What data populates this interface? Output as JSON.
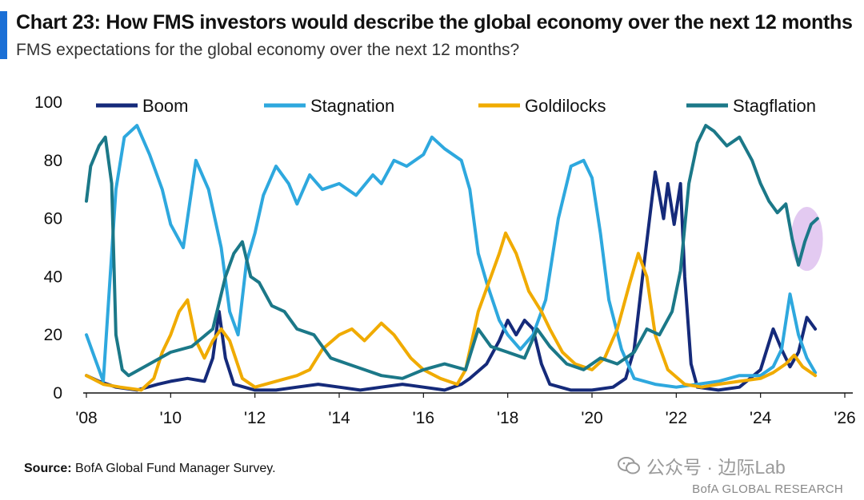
{
  "header": {
    "title": "Chart 23: How FMS investors would describe the global economy over the next 12 months",
    "subtitle": "FMS expectations for the global economy over the next 12 months?",
    "accent_color": "#1a6fd6"
  },
  "footer": {
    "source_label": "Source:",
    "source_text": " BofA Global Fund Manager Survey.",
    "watermark": "公众号 · 边际Lab",
    "watermark_icon": "wechat-icon",
    "brand": "BofA GLOBAL RESEARCH"
  },
  "chart_data": {
    "type": "line",
    "title": "Chart 23: How FMS investors would describe the global economy over the next 12 months",
    "subtitle": "FMS expectations for the global economy over the next 12 months?",
    "xlabel": "",
    "ylabel": "",
    "xlim": [
      2008,
      2026
    ],
    "ylim": [
      0,
      100
    ],
    "x_ticks": [
      2008,
      2010,
      2012,
      2014,
      2016,
      2018,
      2020,
      2022,
      2024,
      2026
    ],
    "x_tick_labels": [
      "'08",
      "'10",
      "'12",
      "'14",
      "'16",
      "'18",
      "'20",
      "'22",
      "'24",
      "'26"
    ],
    "y_ticks": [
      0,
      20,
      40,
      60,
      80,
      100
    ],
    "legend_position": "top",
    "series": [
      {
        "name": "Boom",
        "color": "#152a7a",
        "points": [
          [
            2008.0,
            6
          ],
          [
            2008.3,
            4
          ],
          [
            2008.7,
            2
          ],
          [
            2009.2,
            1
          ],
          [
            2009.7,
            3
          ],
          [
            2010.0,
            4
          ],
          [
            2010.4,
            5
          ],
          [
            2010.8,
            4
          ],
          [
            2011.0,
            12
          ],
          [
            2011.15,
            28
          ],
          [
            2011.3,
            12
          ],
          [
            2011.5,
            3
          ],
          [
            2012.0,
            1
          ],
          [
            2012.5,
            1
          ],
          [
            2013.0,
            2
          ],
          [
            2013.5,
            3
          ],
          [
            2014.0,
            2
          ],
          [
            2014.5,
            1
          ],
          [
            2015.0,
            2
          ],
          [
            2015.5,
            3
          ],
          [
            2016.0,
            2
          ],
          [
            2016.5,
            1
          ],
          [
            2016.9,
            3
          ],
          [
            2017.1,
            5
          ],
          [
            2017.5,
            10
          ],
          [
            2017.8,
            18
          ],
          [
            2018.0,
            25
          ],
          [
            2018.2,
            20
          ],
          [
            2018.4,
            25
          ],
          [
            2018.6,
            22
          ],
          [
            2018.8,
            10
          ],
          [
            2019.0,
            3
          ],
          [
            2019.5,
            1
          ],
          [
            2020.0,
            1
          ],
          [
            2020.5,
            2
          ],
          [
            2020.8,
            5
          ],
          [
            2021.0,
            15
          ],
          [
            2021.2,
            40
          ],
          [
            2021.5,
            76
          ],
          [
            2021.7,
            60
          ],
          [
            2021.8,
            72
          ],
          [
            2021.95,
            58
          ],
          [
            2022.1,
            72
          ],
          [
            2022.2,
            40
          ],
          [
            2022.35,
            10
          ],
          [
            2022.5,
            2
          ],
          [
            2023.0,
            1
          ],
          [
            2023.5,
            2
          ],
          [
            2024.0,
            8
          ],
          [
            2024.3,
            22
          ],
          [
            2024.5,
            15
          ],
          [
            2024.7,
            9
          ],
          [
            2024.9,
            14
          ],
          [
            2025.1,
            26
          ],
          [
            2025.3,
            22
          ]
        ]
      },
      {
        "name": "Stagnation",
        "color": "#2ea8de",
        "points": [
          [
            2008.0,
            20
          ],
          [
            2008.2,
            12
          ],
          [
            2008.4,
            4
          ],
          [
            2008.7,
            70
          ],
          [
            2008.9,
            88
          ],
          [
            2009.2,
            92
          ],
          [
            2009.5,
            82
          ],
          [
            2009.8,
            70
          ],
          [
            2010.0,
            58
          ],
          [
            2010.3,
            50
          ],
          [
            2010.6,
            80
          ],
          [
            2010.9,
            70
          ],
          [
            2011.2,
            50
          ],
          [
            2011.4,
            28
          ],
          [
            2011.6,
            20
          ],
          [
            2011.8,
            45
          ],
          [
            2012.0,
            55
          ],
          [
            2012.2,
            68
          ],
          [
            2012.5,
            78
          ],
          [
            2012.8,
            72
          ],
          [
            2013.0,
            65
          ],
          [
            2013.3,
            75
          ],
          [
            2013.6,
            70
          ],
          [
            2014.0,
            72
          ],
          [
            2014.4,
            68
          ],
          [
            2014.8,
            75
          ],
          [
            2015.0,
            72
          ],
          [
            2015.3,
            80
          ],
          [
            2015.6,
            78
          ],
          [
            2016.0,
            82
          ],
          [
            2016.2,
            88
          ],
          [
            2016.5,
            84
          ],
          [
            2016.9,
            80
          ],
          [
            2017.1,
            70
          ],
          [
            2017.3,
            48
          ],
          [
            2017.5,
            38
          ],
          [
            2017.8,
            25
          ],
          [
            2018.0,
            20
          ],
          [
            2018.3,
            15
          ],
          [
            2018.6,
            20
          ],
          [
            2018.9,
            32
          ],
          [
            2019.2,
            60
          ],
          [
            2019.5,
            78
          ],
          [
            2019.8,
            80
          ],
          [
            2020.0,
            74
          ],
          [
            2020.2,
            55
          ],
          [
            2020.4,
            32
          ],
          [
            2020.7,
            15
          ],
          [
            2021.0,
            5
          ],
          [
            2021.5,
            3
          ],
          [
            2022.0,
            2
          ],
          [
            2022.5,
            3
          ],
          [
            2023.0,
            4
          ],
          [
            2023.5,
            6
          ],
          [
            2024.0,
            6
          ],
          [
            2024.3,
            9
          ],
          [
            2024.5,
            15
          ],
          [
            2024.7,
            34
          ],
          [
            2024.9,
            20
          ],
          [
            2025.1,
            12
          ],
          [
            2025.3,
            7
          ]
        ]
      },
      {
        "name": "Goldilocks",
        "color": "#f0ab00",
        "points": [
          [
            2008.0,
            6
          ],
          [
            2008.4,
            3
          ],
          [
            2008.8,
            2
          ],
          [
            2009.3,
            1
          ],
          [
            2009.6,
            5
          ],
          [
            2009.8,
            14
          ],
          [
            2010.0,
            20
          ],
          [
            2010.2,
            28
          ],
          [
            2010.4,
            32
          ],
          [
            2010.6,
            18
          ],
          [
            2010.8,
            12
          ],
          [
            2011.0,
            18
          ],
          [
            2011.2,
            22
          ],
          [
            2011.4,
            18
          ],
          [
            2011.7,
            5
          ],
          [
            2012.0,
            2
          ],
          [
            2012.5,
            4
          ],
          [
            2013.0,
            6
          ],
          [
            2013.3,
            8
          ],
          [
            2013.6,
            15
          ],
          [
            2014.0,
            20
          ],
          [
            2014.3,
            22
          ],
          [
            2014.6,
            18
          ],
          [
            2015.0,
            24
          ],
          [
            2015.3,
            20
          ],
          [
            2015.7,
            12
          ],
          [
            2016.0,
            8
          ],
          [
            2016.4,
            5
          ],
          [
            2016.8,
            3
          ],
          [
            2017.0,
            8
          ],
          [
            2017.3,
            28
          ],
          [
            2017.6,
            40
          ],
          [
            2017.8,
            48
          ],
          [
            2017.95,
            55
          ],
          [
            2018.2,
            48
          ],
          [
            2018.5,
            35
          ],
          [
            2018.8,
            28
          ],
          [
            2019.0,
            22
          ],
          [
            2019.3,
            14
          ],
          [
            2019.6,
            10
          ],
          [
            2020.0,
            8
          ],
          [
            2020.3,
            12
          ],
          [
            2020.6,
            22
          ],
          [
            2020.9,
            38
          ],
          [
            2021.1,
            48
          ],
          [
            2021.3,
            40
          ],
          [
            2021.5,
            20
          ],
          [
            2021.8,
            8
          ],
          [
            2022.2,
            3
          ],
          [
            2022.6,
            2
          ],
          [
            2023.0,
            3
          ],
          [
            2023.5,
            4
          ],
          [
            2024.0,
            5
          ],
          [
            2024.3,
            7
          ],
          [
            2024.6,
            10
          ],
          [
            2024.8,
            13
          ],
          [
            2025.0,
            9
          ],
          [
            2025.3,
            6
          ]
        ]
      },
      {
        "name": "Stagflation",
        "color": "#1b7888",
        "points": [
          [
            2008.0,
            66
          ],
          [
            2008.1,
            78
          ],
          [
            2008.3,
            85
          ],
          [
            2008.45,
            88
          ],
          [
            2008.6,
            72
          ],
          [
            2008.7,
            20
          ],
          [
            2008.85,
            8
          ],
          [
            2009.0,
            6
          ],
          [
            2009.5,
            10
          ],
          [
            2010.0,
            14
          ],
          [
            2010.5,
            16
          ],
          [
            2011.0,
            22
          ],
          [
            2011.3,
            40
          ],
          [
            2011.5,
            48
          ],
          [
            2011.7,
            52
          ],
          [
            2011.9,
            40
          ],
          [
            2012.1,
            38
          ],
          [
            2012.4,
            30
          ],
          [
            2012.7,
            28
          ],
          [
            2013.0,
            22
          ],
          [
            2013.4,
            20
          ],
          [
            2013.8,
            12
          ],
          [
            2014.2,
            10
          ],
          [
            2014.6,
            8
          ],
          [
            2015.0,
            6
          ],
          [
            2015.5,
            5
          ],
          [
            2016.0,
            8
          ],
          [
            2016.5,
            10
          ],
          [
            2017.0,
            8
          ],
          [
            2017.3,
            22
          ],
          [
            2017.6,
            16
          ],
          [
            2018.0,
            14
          ],
          [
            2018.4,
            12
          ],
          [
            2018.7,
            22
          ],
          [
            2019.0,
            16
          ],
          [
            2019.4,
            10
          ],
          [
            2019.8,
            8
          ],
          [
            2020.2,
            12
          ],
          [
            2020.6,
            10
          ],
          [
            2021.0,
            14
          ],
          [
            2021.3,
            22
          ],
          [
            2021.6,
            20
          ],
          [
            2021.9,
            28
          ],
          [
            2022.1,
            42
          ],
          [
            2022.3,
            72
          ],
          [
            2022.5,
            86
          ],
          [
            2022.7,
            92
          ],
          [
            2022.9,
            90
          ],
          [
            2023.2,
            85
          ],
          [
            2023.5,
            88
          ],
          [
            2023.8,
            80
          ],
          [
            2024.0,
            72
          ],
          [
            2024.2,
            66
          ],
          [
            2024.4,
            62
          ],
          [
            2024.6,
            65
          ],
          [
            2024.75,
            53
          ],
          [
            2024.9,
            44
          ],
          [
            2025.05,
            52
          ],
          [
            2025.2,
            58
          ],
          [
            2025.35,
            60
          ]
        ]
      }
    ],
    "annotation": {
      "type": "ellipse-highlight",
      "color": "#d9b8ec",
      "center": [
        2025.1,
        53
      ],
      "radius": [
        0.38,
        11
      ]
    }
  }
}
